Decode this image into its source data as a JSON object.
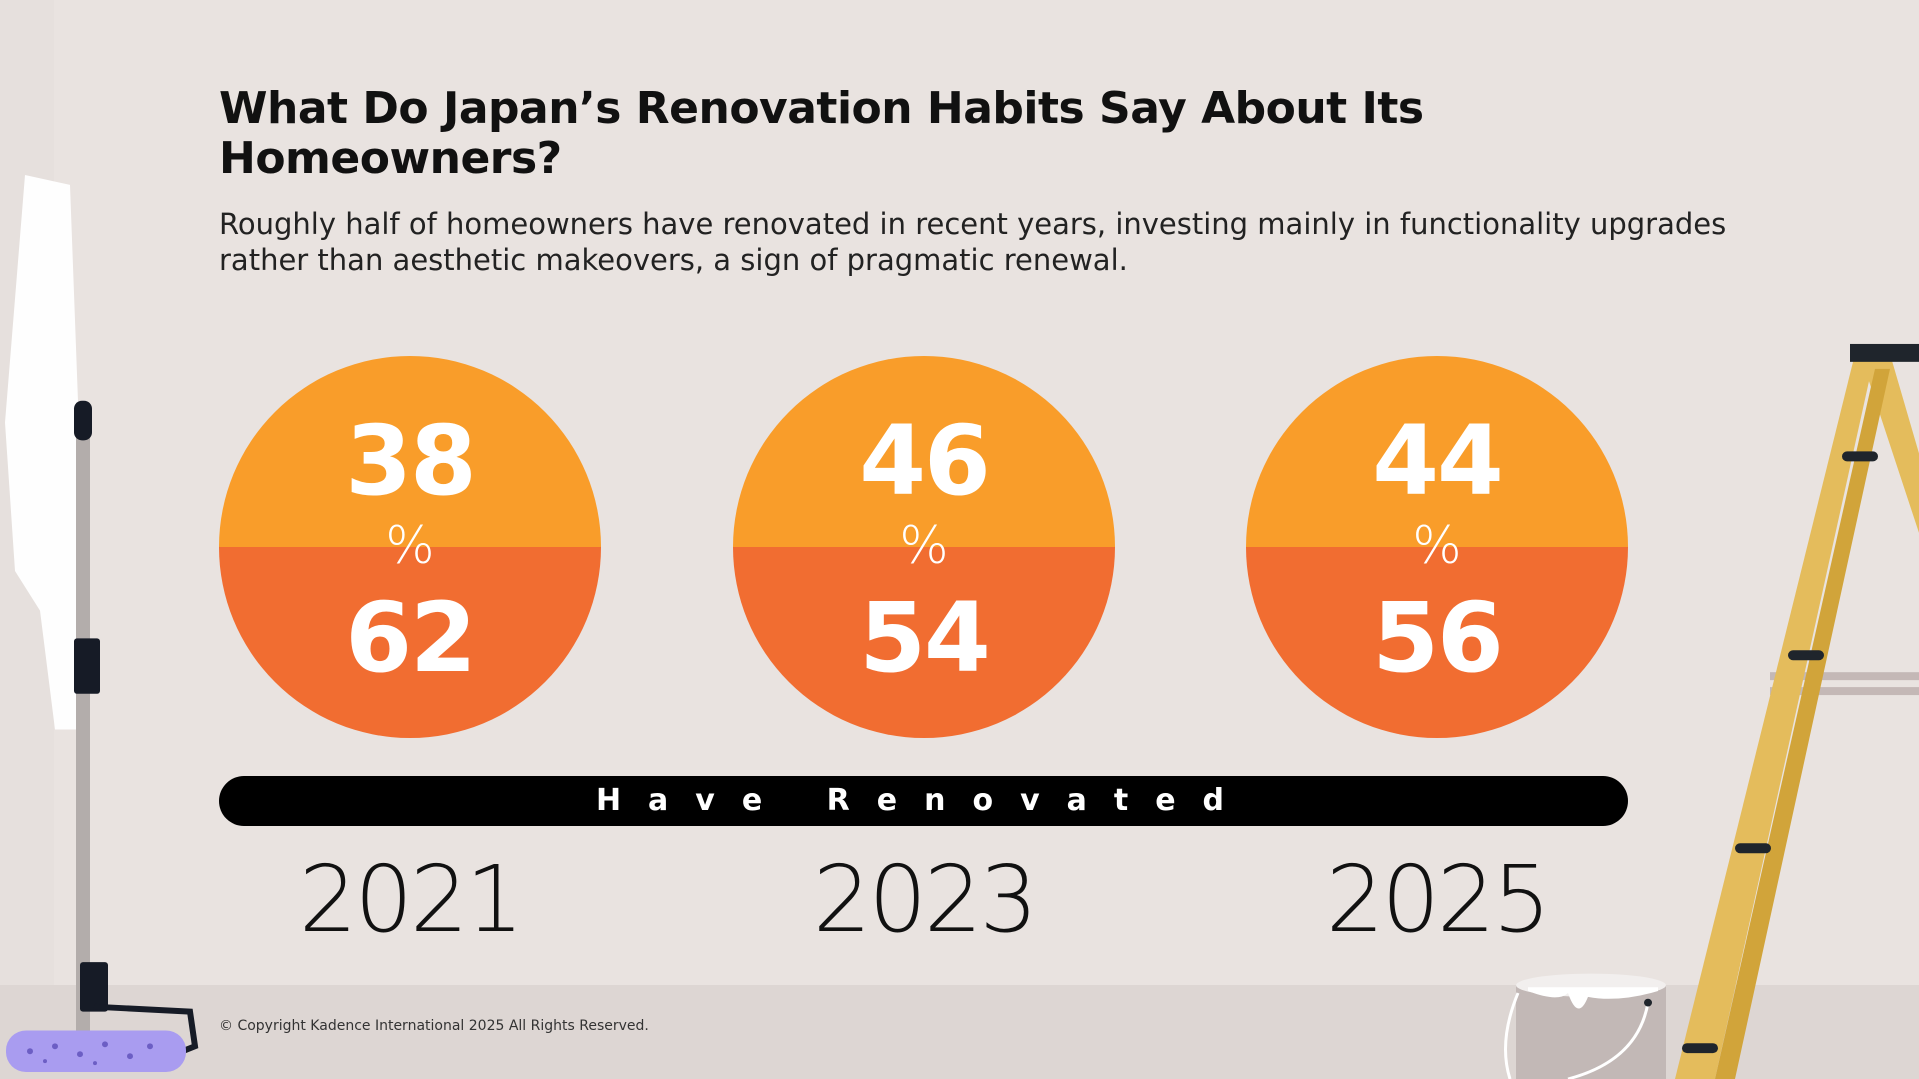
{
  "title": "What Do Japan’s Renovation Habits Say About Its Homeowners?",
  "subtitle": "Roughly half of homeowners have renovated in recent years, investing mainly in functionality upgrades rather than aesthetic makeovers, a sign of pragmatic renewal.",
  "colors": {
    "top_half": "#f99d2a",
    "bottom_half": "#f16d31",
    "bar": "#000000"
  },
  "chart_data": {
    "type": "pie",
    "categories": [
      "2021",
      "2023",
      "2025"
    ],
    "series": [
      {
        "name": "Have Renovated",
        "values": [
          38,
          46,
          44
        ]
      },
      {
        "values": [
          62,
          54,
          56
        ]
      }
    ],
    "unit": "%",
    "items": [
      {
        "year": "2021",
        "top": "38",
        "bottom": "62",
        "unit": "%"
      },
      {
        "year": "2023",
        "top": "46",
        "bottom": "54",
        "unit": "%"
      },
      {
        "year": "2025",
        "top": "44",
        "bottom": "56",
        "unit": "%"
      }
    ],
    "bar_label": "Have Renovated"
  },
  "footer": "© Copyright Kadence International 2025 All Rights Reserved.",
  "icons": [
    "paint-roller-icon",
    "ladder-icon",
    "paint-bucket-icon"
  ]
}
